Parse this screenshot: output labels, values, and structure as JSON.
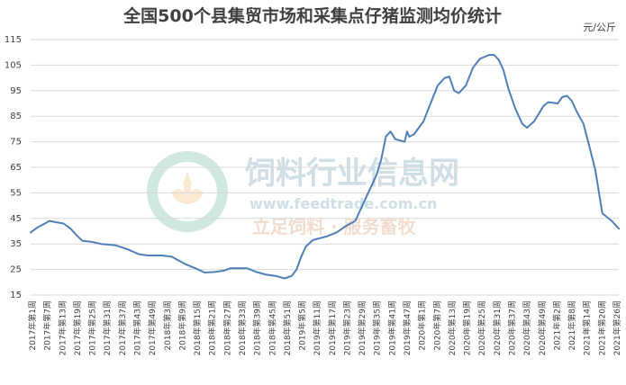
{
  "chart_data": {
    "type": "line",
    "title": "全国500个县集贸市场和采集点仔猪监测均价统计",
    "unit_label": "元/公斤",
    "ylim": [
      15,
      115
    ],
    "y_ticks": [
      15,
      25,
      35,
      45,
      55,
      65,
      75,
      85,
      95,
      105,
      115
    ],
    "grid": "horizontal",
    "x_tick_labels": [
      "2017年第1周",
      "2017年第7周",
      "2017年第13周",
      "2017年第19周",
      "2017年第25周",
      "2017年第31周",
      "2017年第37周",
      "2017年第43周",
      "2017年第49周",
      "2018年第3周",
      "2018年第9周",
      "2018年第15周",
      "2018年第21周",
      "2018年第27周",
      "2018年第33周",
      "2018年第39周",
      "2018年第45周",
      "2018年第51周",
      "2019年第5周",
      "2019年第11周",
      "2019年第17周",
      "2019年第23周",
      "2019年第29周",
      "2019年第35周",
      "2019年第41周",
      "2019年第47周",
      "2020年第1周",
      "2020年第7周",
      "2020年第13周",
      "2020年第19周",
      "2020年第25周",
      "2020年第31周",
      "2020年第37周",
      "2020年第43周",
      "2020年第49周",
      "2021年第2周",
      "2021年第8周",
      "2021年第14周",
      "2021年第20周",
      "2021年第26周"
    ],
    "series": [
      {
        "color": "#4f7fb8",
        "points": [
          [
            0,
            39.5
          ],
          [
            3,
            41.5
          ],
          [
            6,
            43
          ],
          [
            8,
            44
          ],
          [
            11,
            43.5
          ],
          [
            14,
            43
          ],
          [
            17,
            41
          ],
          [
            20,
            38
          ],
          [
            22,
            36.2
          ],
          [
            26,
            35.8
          ],
          [
            30,
            35
          ],
          [
            36,
            34.5
          ],
          [
            41,
            33
          ],
          [
            46,
            31
          ],
          [
            50,
            30.5
          ],
          [
            56,
            30.5
          ],
          [
            60,
            30
          ],
          [
            63,
            28.5
          ],
          [
            66,
            27
          ],
          [
            70,
            25.5
          ],
          [
            74,
            23.8
          ],
          [
            78,
            24
          ],
          [
            82,
            24.5
          ],
          [
            85,
            25.5
          ],
          [
            92,
            25.5
          ],
          [
            96,
            24
          ],
          [
            100,
            23
          ],
          [
            104,
            22.5
          ],
          [
            108,
            21.5
          ],
          [
            111,
            22.5
          ],
          [
            113,
            25
          ],
          [
            115,
            30
          ],
          [
            117,
            34
          ],
          [
            120,
            36.5
          ],
          [
            126,
            38
          ],
          [
            130,
            39.5
          ],
          [
            134,
            42
          ],
          [
            138,
            44
          ],
          [
            141,
            50
          ],
          [
            144,
            56
          ],
          [
            147,
            62
          ],
          [
            149,
            68
          ],
          [
            151,
            77
          ],
          [
            153,
            79
          ],
          [
            155,
            76
          ],
          [
            157,
            75.5
          ],
          [
            159,
            75
          ],
          [
            160,
            79
          ],
          [
            161,
            77
          ],
          [
            163,
            78
          ],
          [
            167,
            83
          ],
          [
            170,
            90
          ],
          [
            173,
            97
          ],
          [
            176,
            100
          ],
          [
            178,
            100.5
          ],
          [
            180,
            95
          ],
          [
            182,
            94
          ],
          [
            185,
            97
          ],
          [
            188,
            104
          ],
          [
            191,
            107.5
          ],
          [
            195,
            109
          ],
          [
            197,
            109
          ],
          [
            199,
            107
          ],
          [
            201,
            103
          ],
          [
            203,
            96
          ],
          [
            206,
            88
          ],
          [
            209,
            82
          ],
          [
            211,
            80.5
          ],
          [
            214,
            83
          ],
          [
            218,
            89
          ],
          [
            220,
            90.5
          ],
          [
            224,
            90
          ],
          [
            226,
            92.5
          ],
          [
            228,
            93
          ],
          [
            230,
            91
          ],
          [
            232,
            87
          ],
          [
            235,
            82
          ],
          [
            237,
            75
          ],
          [
            240,
            64
          ],
          [
            243,
            47
          ],
          [
            247,
            44
          ],
          [
            250,
            41
          ]
        ]
      }
    ],
    "x_total_weeks": 250
  },
  "watermark": {
    "name": "饲料行业信息网",
    "url": "www.feedtrade.com.cn",
    "slogan": "立足饲料 · 服务畜牧"
  }
}
